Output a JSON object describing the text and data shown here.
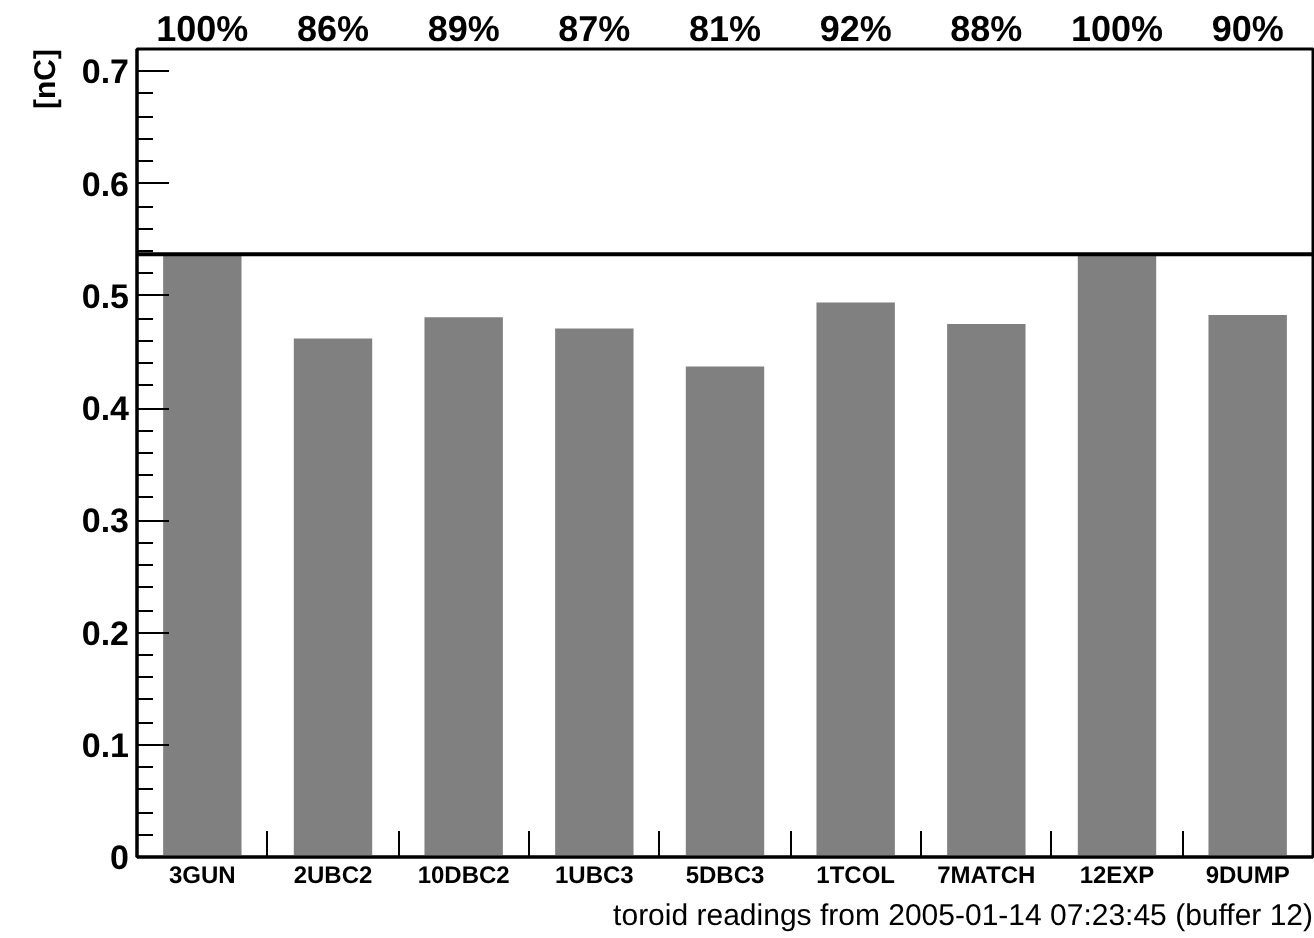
{
  "chart_data": {
    "type": "bar",
    "ylabel": "[nC]",
    "xlabel": "toroid readings from 2005-01-14 07:23:45 (buffer 12)",
    "categories": [
      "3GUN",
      "2UBC2",
      "10DBC2",
      "1UBC3",
      "5DBC3",
      "1TCOL",
      "7MATCH",
      "12EXP",
      "9DUMP"
    ],
    "values": [
      0.537,
      0.462,
      0.481,
      0.471,
      0.437,
      0.494,
      0.475,
      0.537,
      0.483
    ],
    "annotations": [
      "100%",
      "86%",
      "89%",
      "87%",
      "81%",
      "92%",
      "88%",
      "100%",
      "90%"
    ],
    "color": "#808080",
    "ylim": [
      0,
      0.72
    ],
    "yticks": [
      0,
      {
        "value": 0.02,
        "label": null
      },
      {
        "value": 0.04,
        "label": null
      },
      {
        "value": 0.06,
        "label": null
      },
      {
        "value": 0.08,
        "label": null
      },
      0.1,
      {
        "value": 0.12,
        "label": null
      },
      {
        "value": 0.14,
        "label": null
      },
      {
        "value": 0.16,
        "label": null
      },
      {
        "value": 0.18,
        "label": null
      },
      0.2,
      {
        "value": 0.22,
        "label": null
      },
      {
        "value": 0.24,
        "label": null
      },
      {
        "value": 0.26,
        "label": null
      },
      {
        "value": 0.28,
        "label": null
      },
      0.3,
      {
        "value": 0.32,
        "label": null
      },
      {
        "value": 0.34,
        "label": null
      },
      {
        "value": 0.36,
        "label": null
      },
      {
        "value": 0.38,
        "label": null
      },
      0.4,
      {
        "value": 0.42,
        "label": null
      },
      {
        "value": 0.44,
        "label": null
      },
      {
        "value": 0.46,
        "label": null
      },
      {
        "value": 0.48,
        "label": null
      },
      0.5,
      {
        "value": 0.52,
        "label": null
      },
      {
        "value": 0.54,
        "label": null
      },
      {
        "value": 0.56,
        "label": null
      },
      {
        "value": 0.58,
        "label": null
      },
      0.6,
      {
        "value": 0.62,
        "label": null
      },
      {
        "value": 0.64,
        "label": null
      },
      {
        "value": 0.66,
        "label": null
      },
      {
        "value": 0.68,
        "label": null
      },
      0.7
    ],
    "ref_lines": [
      {
        "axis": "y",
        "value": 0.537,
        "color": "#000000"
      }
    ]
  }
}
